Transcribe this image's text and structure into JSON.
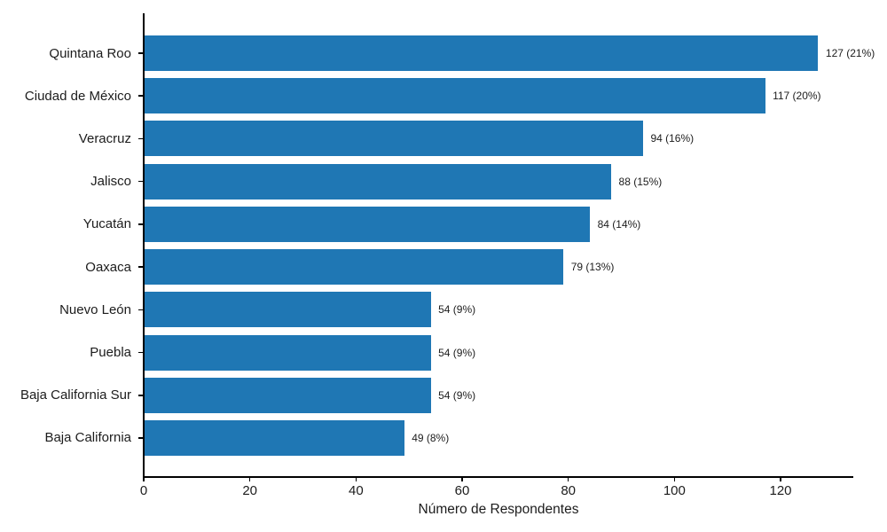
{
  "chart_data": {
    "type": "bar",
    "orientation": "horizontal",
    "title": "",
    "xlabel": "Número de Respondentes",
    "ylabel": "",
    "categories": [
      "Quintana Roo",
      "Ciudad de México",
      "Veracruz",
      "Jalisco",
      "Yucatán",
      "Oaxaca",
      "Nuevo León",
      "Puebla",
      "Baja California Sur",
      "Baja California"
    ],
    "values": [
      127,
      117,
      94,
      88,
      84,
      79,
      54,
      54,
      54,
      49
    ],
    "percentages": [
      21,
      20,
      16,
      15,
      14,
      13,
      9,
      9,
      9,
      8
    ],
    "bar_labels": [
      "127 (21%)",
      "117 (20%)",
      "94 (16%)",
      "88 (15%)",
      "84 (14%)",
      "79 (13%)",
      "54 (9%)",
      "54 (9%)",
      "54 (9%)",
      "49 (8%)"
    ],
    "x_ticks": [
      0,
      20,
      40,
      60,
      80,
      100,
      120
    ],
    "xlim": [
      0,
      133.7
    ],
    "grid": false,
    "legend": null,
    "bar_color": "#1f77b4",
    "text_color": "#1c1c1c",
    "axis_color": "#000000",
    "background_color": "#ffffff"
  }
}
